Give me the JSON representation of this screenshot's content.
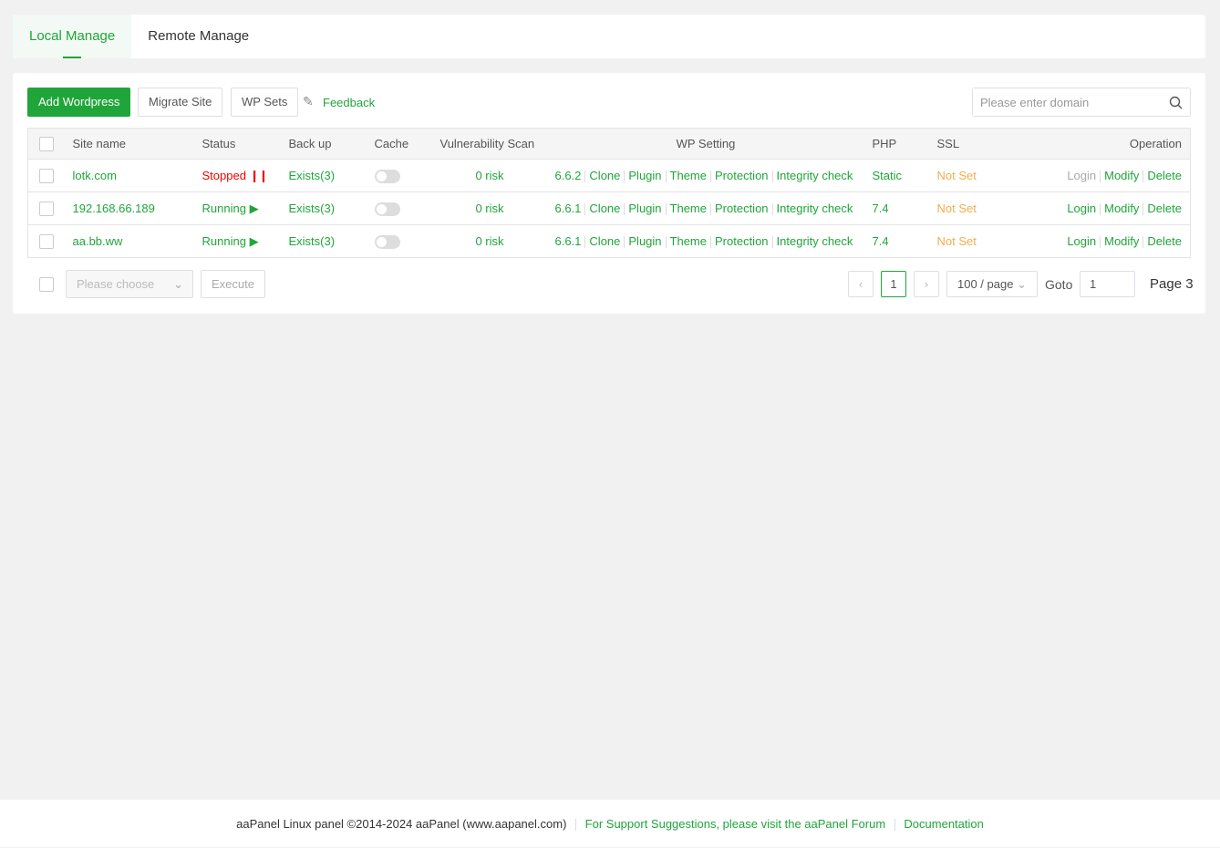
{
  "tabs": [
    {
      "label": "Local Manage",
      "active": true
    },
    {
      "label": "Remote Manage",
      "active": false
    }
  ],
  "toolbar": {
    "add": "Add Wordpress",
    "migrate": "Migrate Site",
    "wpsets": "WP Sets",
    "feedback": "Feedback",
    "search_placeholder": "Please enter domain"
  },
  "table": {
    "headers": [
      "Site name",
      "Status",
      "Back up",
      "Cache",
      "Vulnerability Scan",
      "WP Setting",
      "PHP",
      "SSL",
      "Operation"
    ],
    "rows": [
      {
        "site": "lotk.com",
        "status": "Stopped",
        "status_icon": "pause-icon",
        "backup": "Exists(3)",
        "cache": false,
        "vuln": "0 risk",
        "version": "6.6.2",
        "php": "Static",
        "ssl": "Not Set",
        "login_disabled": true
      },
      {
        "site": "192.168.66.189",
        "status": "Running",
        "status_icon": "play-icon",
        "backup": "Exists(3)",
        "cache": false,
        "vuln": "0 risk",
        "version": "6.6.1",
        "php": "7.4",
        "ssl": "Not Set",
        "login_disabled": false
      },
      {
        "site": "aa.bb.ww",
        "status": "Running",
        "status_icon": "play-icon",
        "backup": "Exists(3)",
        "cache": false,
        "vuln": "0 risk",
        "version": "6.6.1",
        "php": "7.4",
        "ssl": "Not Set",
        "login_disabled": false
      }
    ],
    "wp_actions": [
      "Clone",
      "Plugin",
      "Theme",
      "Protection",
      "Integrity check"
    ],
    "operations": [
      "Login",
      "Modify",
      "Delete"
    ]
  },
  "batch": {
    "placeholder": "Please choose",
    "execute": "Execute"
  },
  "pagination": {
    "current": "1",
    "per_page": "100 / page",
    "goto_label": "Goto",
    "goto_value": "1",
    "page_info": "Page 3"
  },
  "footer": {
    "copyright": "aaPanel Linux panel ©2014-2024 aaPanel (www.aapanel.com)",
    "support": "For Support Suggestions, please visit the aaPanel Forum",
    "docs": "Documentation"
  },
  "colors": {
    "accent": "#20a53a",
    "stopped": "#ee0000",
    "ssl": "#f0ad4e"
  }
}
